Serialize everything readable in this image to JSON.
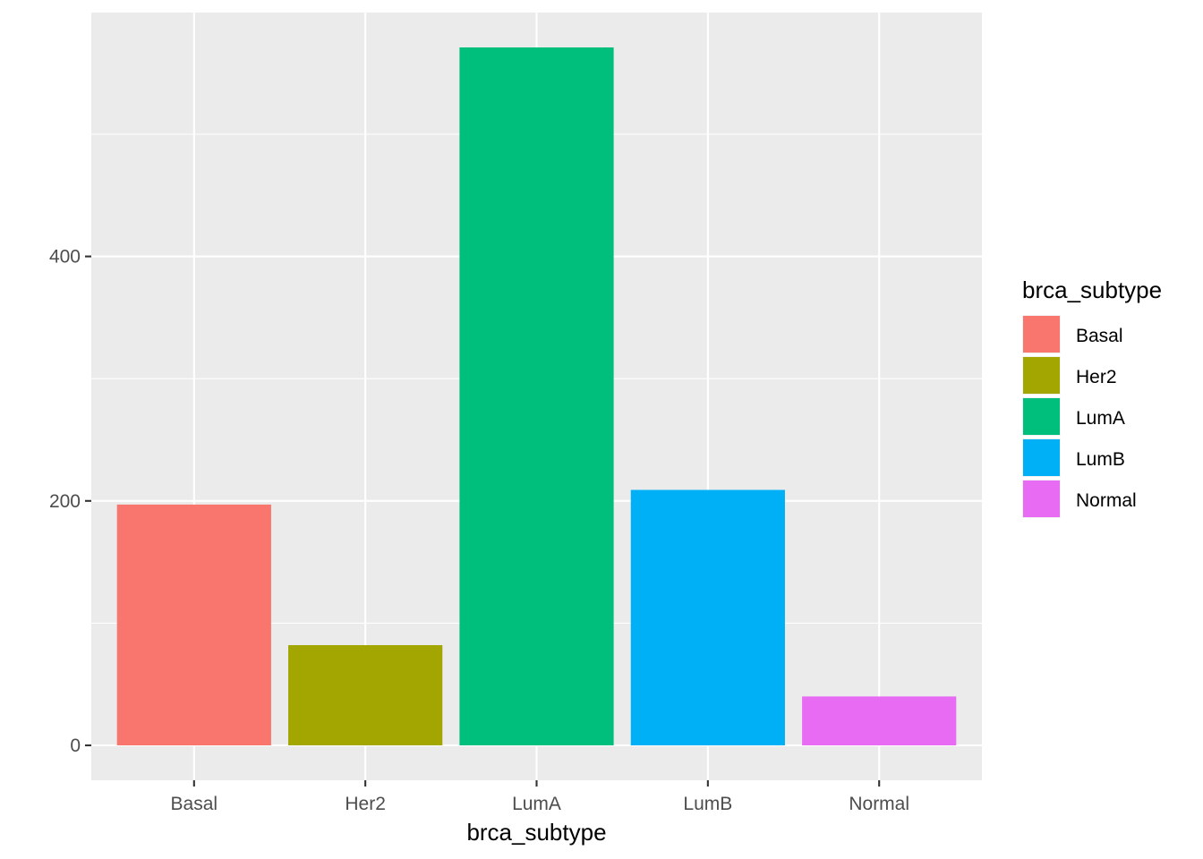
{
  "chart_data": {
    "type": "bar",
    "categories": [
      "Basal",
      "Her2",
      "LumA",
      "LumB",
      "Normal"
    ],
    "values": [
      197,
      82,
      571,
      209,
      40
    ],
    "colors": [
      "#F8766D",
      "#A3A500",
      "#00BF7D",
      "#00B0F6",
      "#E76BF3"
    ],
    "title": "",
    "xlabel": "brca_subtype",
    "ylabel": "",
    "ylim": [
      -28.55,
      599.55
    ],
    "yticks": [
      0,
      200,
      400
    ],
    "legend": {
      "title": "brca_subtype",
      "entries": [
        "Basal",
        "Her2",
        "LumA",
        "LumB",
        "Normal"
      ],
      "placement": "right"
    },
    "grid": true,
    "panel_background": "#EBEBEB",
    "grid_color": "#FFFFFF"
  }
}
